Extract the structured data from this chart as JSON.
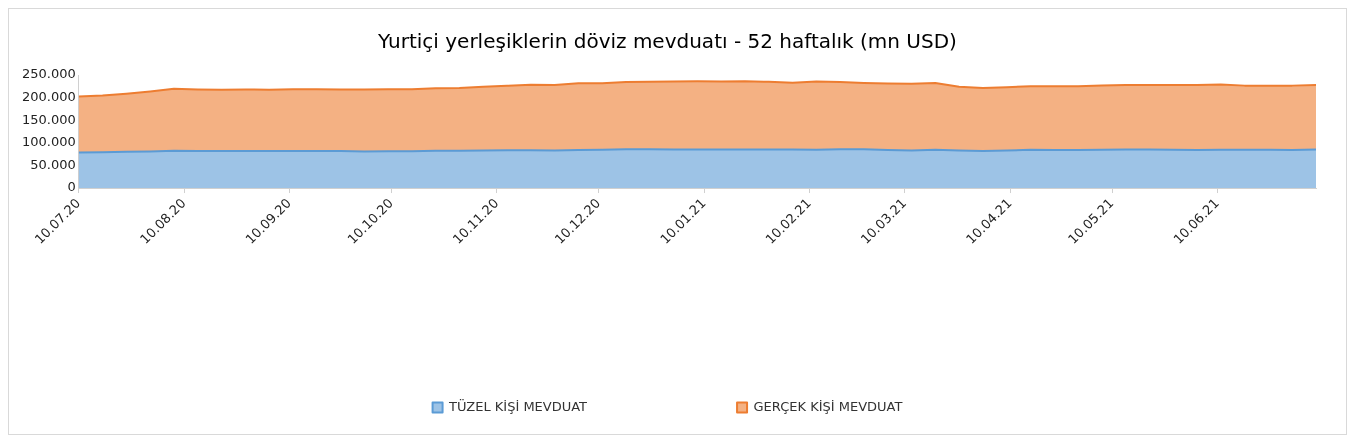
{
  "chart_data": {
    "type": "area",
    "title": "Yurtiçi yerleşiklerin döviz mevduatı - 52 haftalık (mn USD)",
    "stacked": true,
    "grid": false,
    "legend": "bottom",
    "x": [
      "2020-07-10",
      "2020-07-17",
      "2020-07-24",
      "2020-07-31",
      "2020-08-07",
      "2020-08-14",
      "2020-08-21",
      "2020-08-28",
      "2020-09-04",
      "2020-09-11",
      "2020-09-18",
      "2020-09-25",
      "2020-10-02",
      "2020-10-09",
      "2020-10-16",
      "2020-10-23",
      "2020-10-30",
      "2020-11-06",
      "2020-11-13",
      "2020-11-20",
      "2020-11-27",
      "2020-12-04",
      "2020-12-11",
      "2020-12-18",
      "2020-12-25",
      "2021-01-01",
      "2021-01-08",
      "2021-01-15",
      "2021-01-22",
      "2021-01-29",
      "2021-02-05",
      "2021-02-12",
      "2021-02-19",
      "2021-02-26",
      "2021-03-05",
      "2021-03-12",
      "2021-03-19",
      "2021-03-26",
      "2021-04-02",
      "2021-04-09",
      "2021-04-16",
      "2021-04-23",
      "2021-04-30",
      "2021-05-07",
      "2021-05-14",
      "2021-05-21",
      "2021-05-28",
      "2021-06-04",
      "2021-06-11",
      "2021-06-18",
      "2021-06-25",
      "2021-07-02",
      "2021-07-09"
    ],
    "xlim": [
      "2020-07-10",
      "2021-07-09"
    ],
    "xticks": [
      {
        "value": "2020-07-10",
        "label": "10.07.20"
      },
      {
        "value": "2020-08-10",
        "label": "10.08.20"
      },
      {
        "value": "2020-09-10",
        "label": "10.09.20"
      },
      {
        "value": "2020-10-10",
        "label": "10.10.20"
      },
      {
        "value": "2020-11-10",
        "label": "10.11.20"
      },
      {
        "value": "2020-12-10",
        "label": "10.12.20"
      },
      {
        "value": "2021-01-10",
        "label": "10.01.21"
      },
      {
        "value": "2021-02-10",
        "label": "10.02.21"
      },
      {
        "value": "2021-03-10",
        "label": "10.03.21"
      },
      {
        "value": "2021-04-10",
        "label": "10.04.21"
      },
      {
        "value": "2021-05-10",
        "label": "10.05.21"
      },
      {
        "value": "2021-06-10",
        "label": "10.06.21"
      }
    ],
    "ylim": [
      0,
      250000
    ],
    "yticks": [
      {
        "value": 0,
        "label": "0"
      },
      {
        "value": 50000,
        "label": "50.000"
      },
      {
        "value": 100000,
        "label": "100.000"
      },
      {
        "value": 150000,
        "label": "150.000"
      },
      {
        "value": 200000,
        "label": "200.000"
      },
      {
        "value": 250000,
        "label": "250.000"
      }
    ],
    "series": [
      {
        "name": "TÜZEL KİŞİ MEVDUAT",
        "color": "#5b9bd5",
        "values": [
          78500,
          79000,
          80500,
          81000,
          82500,
          82000,
          82000,
          82000,
          82000,
          82000,
          82000,
          82000,
          81000,
          81500,
          81500,
          82500,
          82500,
          83000,
          83500,
          83500,
          83000,
          84000,
          84500,
          86000,
          86000,
          85500,
          85000,
          85000,
          85000,
          85500,
          85000,
          84500,
          86000,
          86000,
          84000,
          83000,
          84500,
          83000,
          82000,
          83000,
          84500,
          84000,
          84000,
          84500,
          85000,
          85000,
          84500,
          84000,
          84500,
          84500,
          84500,
          84000,
          85500
        ]
      },
      {
        "name": "GERÇEK KİŞİ MEVDUAT",
        "color": "#ed7d31",
        "values": [
          124000,
          125500,
          128000,
          132500,
          137000,
          136000,
          135500,
          136000,
          135500,
          136500,
          136500,
          136000,
          137000,
          137000,
          137000,
          138000,
          138500,
          141000,
          142500,
          145000,
          145000,
          147500,
          147500,
          148500,
          149000,
          150000,
          151000,
          150500,
          151000,
          149500,
          148000,
          151000,
          148500,
          146500,
          147000,
          147500,
          148000,
          141000,
          139000,
          140000,
          140500,
          141000,
          141000,
          142500,
          143000,
          143000,
          143500,
          144000,
          144500,
          142000,
          142000,
          142500,
          142500
        ]
      }
    ]
  }
}
